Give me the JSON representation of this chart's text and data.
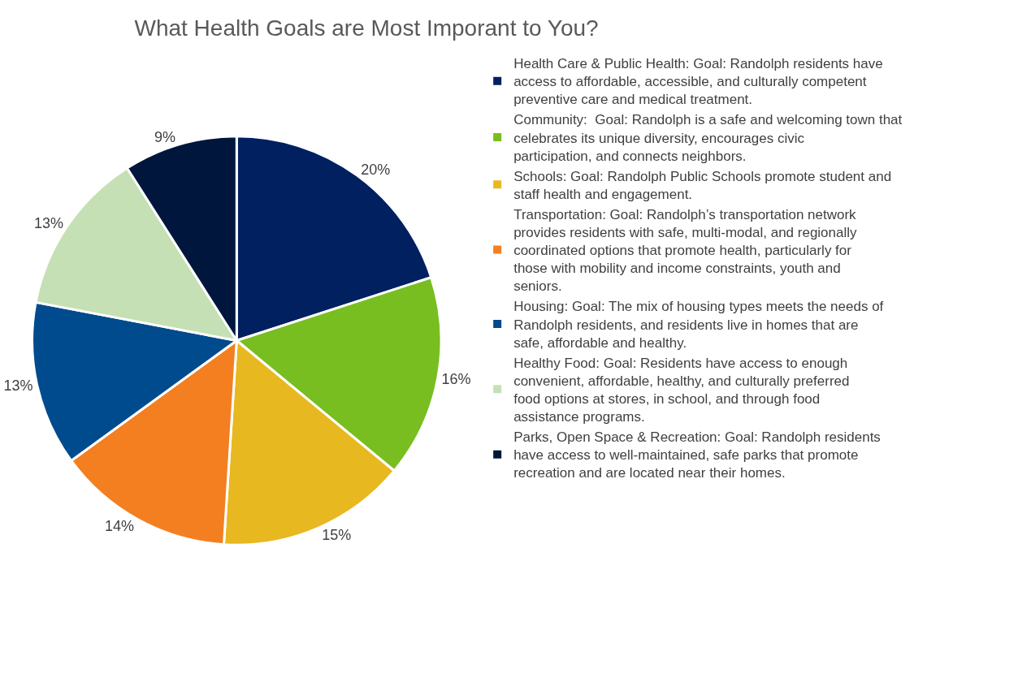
{
  "chart_data": {
    "type": "pie",
    "title": "What Health Goals are Most Imporant to You?",
    "categories": [
      "Health Care & Public Health: Goal: Randolph residents have access to affordable, accessible, and culturally competent preventive care and medical treatment.",
      "Community:  Goal: Randolph is a safe and welcoming town that celebrates its unique diversity, encourages civic participation, and connects neighbors.",
      "Schools: Goal: Randolph Public Schools promote student and staff health and engagement.",
      "Transportation: Goal: Randolph’s transportation network provides residents with safe, multi-modal, and regionally coordinated options that promote health, particularly for those with mobility and income constraints, youth and seniors.",
      "Housing: Goal: The mix of housing types meets the needs of Randolph residents, and residents live in homes that are safe, affordable and healthy.",
      "Healthy Food: Goal: Residents have access to enough convenient, affordable, healthy, and culturally preferred food options at stores, in school, and through food assistance programs.",
      "Parks, Open Space & Recreation: Goal: Randolph residents have access to well-maintained, safe parks that promote recreation and are located near their homes."
    ],
    "values": [
      20,
      16,
      15,
      14,
      13,
      13,
      9
    ],
    "value_labels": [
      "20%",
      "16%",
      "15%",
      "14%",
      "13%",
      "13%",
      "9%"
    ],
    "colors": [
      "#002060",
      "#78be20",
      "#e8b820",
      "#f47f20",
      "#004b8d",
      "#c5e0b4",
      "#00163d"
    ],
    "legend": "right"
  }
}
